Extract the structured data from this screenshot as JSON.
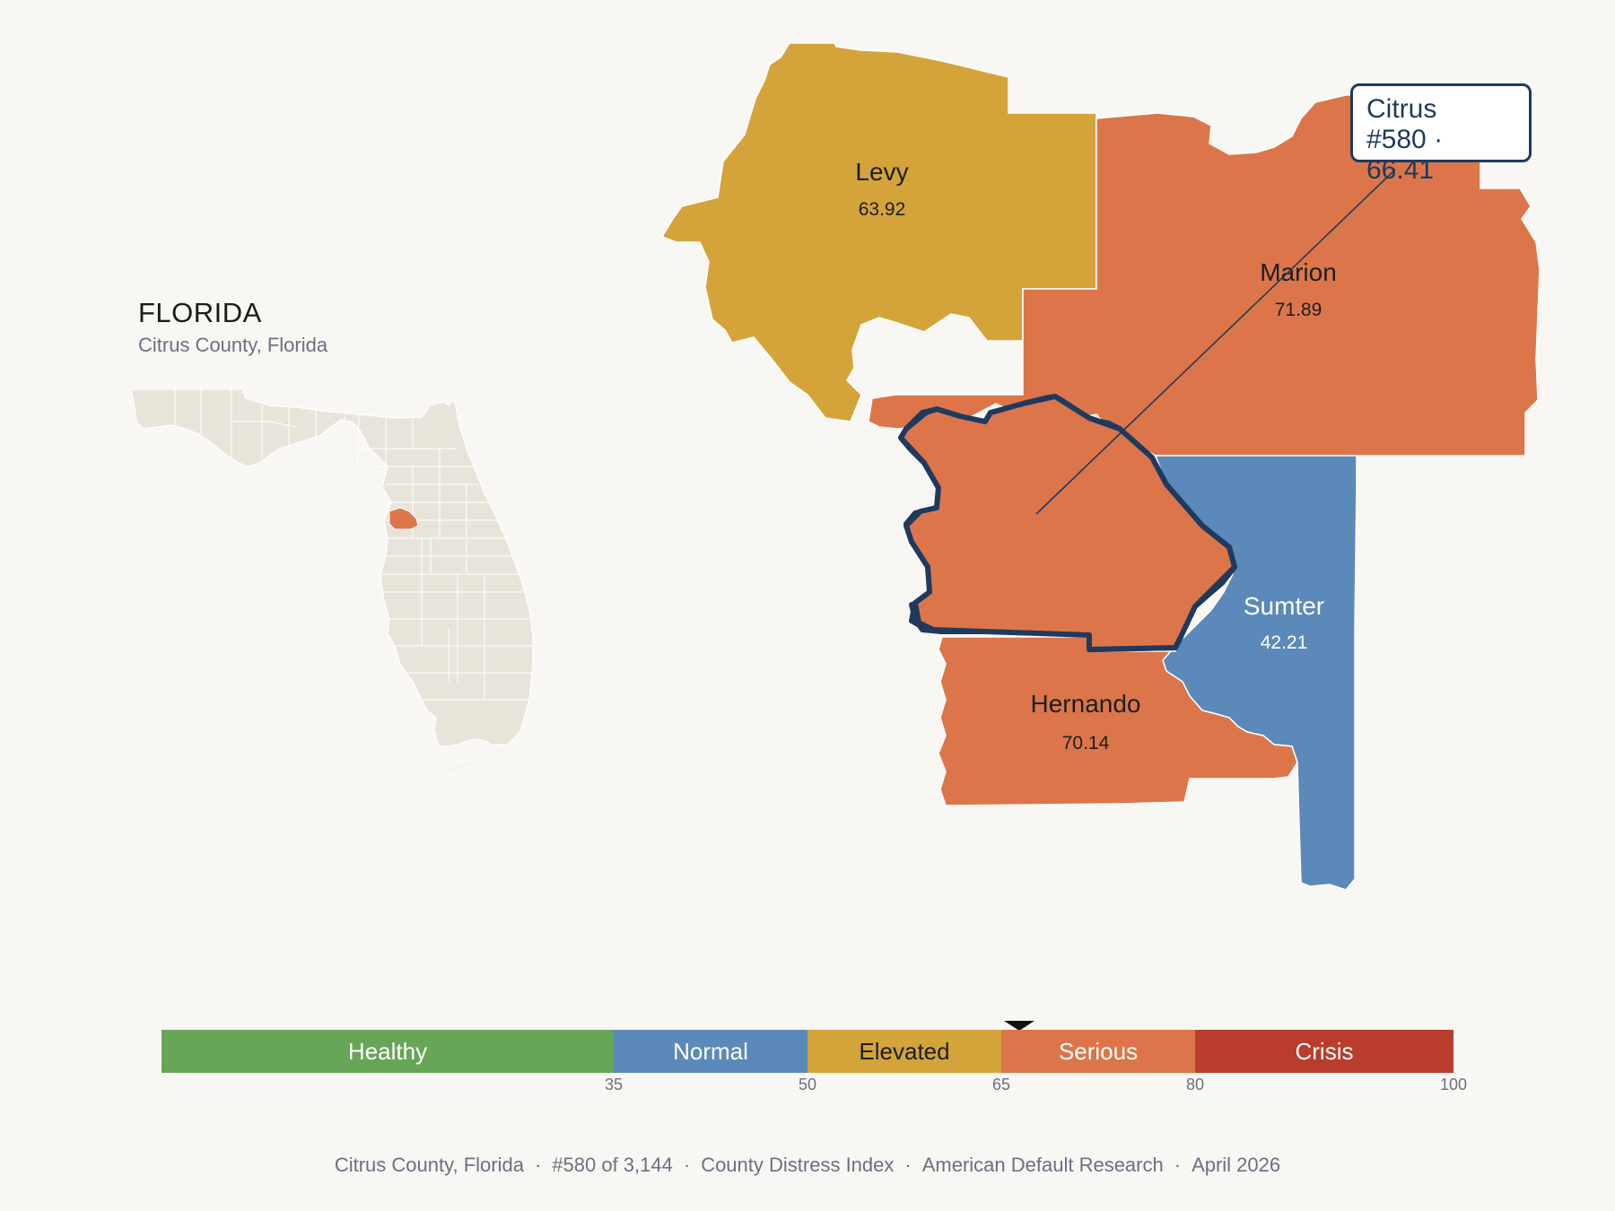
{
  "inset": {
    "title": "FLORIDA",
    "subtitle": "Citrus County, Florida"
  },
  "focus_county": {
    "name": "Citrus",
    "rank_text": "#580",
    "score": "66.41",
    "callout_line2": "#580 · 66.41",
    "category": "Serious"
  },
  "neighbors": [
    {
      "name": "Levy",
      "value": "63.92",
      "category": "Elevated"
    },
    {
      "name": "Marion",
      "value": "71.89",
      "category": "Serious"
    },
    {
      "name": "Sumter",
      "value": "42.21",
      "category": "Normal"
    },
    {
      "name": "Hernando",
      "value": "70.14",
      "category": "Serious"
    }
  ],
  "legend": {
    "segments": [
      {
        "label": "Healthy",
        "from": 0,
        "to": 35,
        "color": "#67a657"
      },
      {
        "label": "Normal",
        "from": 35,
        "to": 50,
        "color": "#5b89b9"
      },
      {
        "label": "Elevated",
        "from": 50,
        "to": 65,
        "color": "#d4a43b"
      },
      {
        "label": "Serious",
        "from": 65,
        "to": 80,
        "color": "#dc764a"
      },
      {
        "label": "Crisis",
        "from": 80,
        "to": 100,
        "color": "#b93c2c"
      }
    ],
    "ticks": [
      "35",
      "50",
      "65",
      "80",
      "100"
    ],
    "marker_value": 66.41
  },
  "colors": {
    "background": "#f9f7f3",
    "inset_land": "#e9e4da",
    "highlight_outline": "#1e3a5f"
  },
  "footer": {
    "county": "Citrus County, Florida",
    "rank": "#580 of 3,144",
    "index": "County Distress Index",
    "org": "American Default Research",
    "date": "April 2026"
  }
}
